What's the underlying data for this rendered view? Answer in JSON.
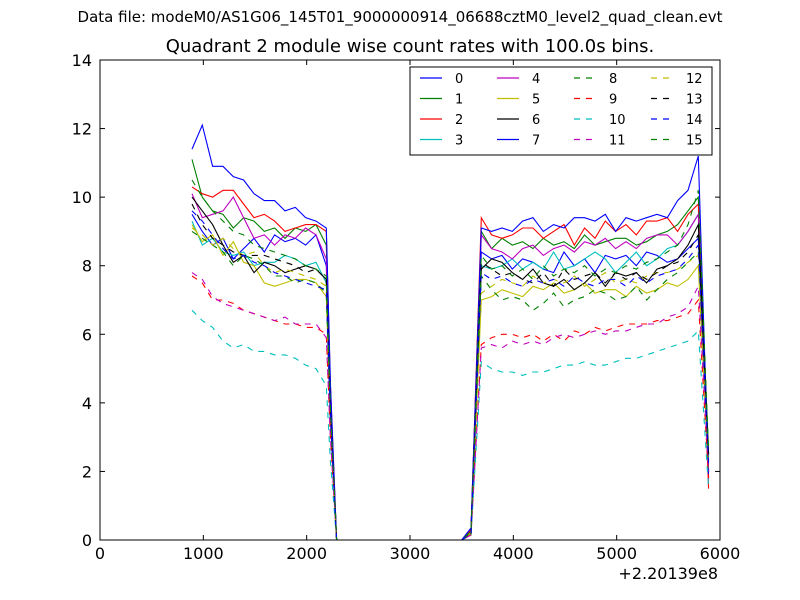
{
  "figure": {
    "suptitle": "Data file: modeM0/AS1G06_145T01_9000000914_06688cztM0_level2_quad_clean.evt",
    "offset_label": "+2.20139e8"
  },
  "chart_data": {
    "type": "line",
    "title": "Quadrant 2 module wise count rates with 100.0s bins.",
    "xlabel": "",
    "ylabel": "",
    "xlim": [
      0,
      6000
    ],
    "ylim": [
      0,
      14
    ],
    "x_offset": 220139000,
    "xticks": [
      0,
      1000,
      2000,
      3000,
      4000,
      5000,
      6000
    ],
    "xtick_labels": [
      "0",
      "1000",
      "2000",
      "3000",
      "4000",
      "5000",
      "6000"
    ],
    "yticks": [
      0,
      2,
      4,
      6,
      8,
      10,
      12,
      14
    ],
    "ytick_labels": [
      "0",
      "2",
      "4",
      "6",
      "8",
      "10",
      "12",
      "14"
    ],
    "legend_position": "top-right",
    "legend_columns": 4,
    "x": [
      890,
      990,
      1090,
      1190,
      1290,
      1390,
      1490,
      1590,
      1690,
      1790,
      1890,
      1990,
      2090,
      2190,
      2230,
      2290,
      3500,
      3590,
      3690,
      3790,
      3890,
      3990,
      4090,
      4190,
      4290,
      4390,
      4490,
      4590,
      4690,
      4790,
      4890,
      4990,
      5090,
      5190,
      5290,
      5390,
      5490,
      5590,
      5690,
      5790,
      5890
    ],
    "series": [
      {
        "name": "0",
        "color": "#0000ff",
        "dash": "solid",
        "values": [
          9.5,
          9.0,
          8.6,
          8.8,
          8.2,
          8.5,
          8.8,
          8.4,
          8.9,
          8.7,
          8.8,
          8.6,
          8.9,
          8.0,
          4.0,
          0,
          0,
          0.2,
          8.4,
          8.2,
          8.3,
          7.9,
          8.2,
          8.1,
          7.9,
          7.8,
          8.4,
          8.0,
          8.2,
          7.8,
          8.3,
          8.2,
          8.3,
          8.0,
          8.4,
          8.3,
          8.1,
          8.2,
          8.5,
          8.8,
          2.0
        ]
      },
      {
        "name": "1",
        "color": "#008000",
        "dash": "solid",
        "values": [
          11.1,
          10.0,
          9.6,
          9.5,
          9.1,
          9.4,
          9.3,
          9.0,
          9.1,
          8.8,
          9.1,
          9.0,
          9.2,
          8.6,
          4.3,
          0,
          0,
          0.25,
          9.0,
          8.5,
          8.8,
          8.6,
          8.7,
          8.5,
          8.8,
          8.6,
          8.7,
          8.5,
          8.9,
          8.6,
          8.7,
          8.8,
          8.8,
          8.6,
          8.7,
          8.9,
          9.0,
          9.2,
          9.6,
          10.0,
          2.3
        ]
      },
      {
        "name": "2",
        "color": "#ff0000",
        "dash": "solid",
        "values": [
          10.3,
          10.1,
          10.0,
          10.2,
          10.2,
          9.8,
          9.4,
          9.5,
          9.3,
          9.0,
          9.1,
          9.2,
          9.2,
          9.0,
          4.5,
          0,
          0,
          0.3,
          9.4,
          8.9,
          8.8,
          8.9,
          9.1,
          9.1,
          8.8,
          9.0,
          9.2,
          8.6,
          9.1,
          8.8,
          9.3,
          9.0,
          9.2,
          8.9,
          9.3,
          9.3,
          9.4,
          9.0,
          9.5,
          9.8,
          1.5
        ]
      },
      {
        "name": "3",
        "color": "#00bfbf",
        "dash": "solid",
        "values": [
          9.3,
          8.6,
          8.8,
          8.4,
          8.3,
          8.4,
          8.0,
          8.1,
          8.1,
          8.3,
          8.2,
          8.0,
          8.1,
          7.5,
          3.8,
          0,
          0,
          0.2,
          8.0,
          7.9,
          8.0,
          8.2,
          7.9,
          8.1,
          7.9,
          8.4,
          7.9,
          8.0,
          8.2,
          8.4,
          8.2,
          7.8,
          8.1,
          8.4,
          8.0,
          8.2,
          8.5,
          8.6,
          9.0,
          9.5,
          2.5
        ]
      },
      {
        "name": "4",
        "color": "#bf00bf",
        "dash": "solid",
        "values": [
          10.1,
          9.4,
          9.5,
          9.6,
          10.0,
          9.4,
          8.8,
          8.9,
          8.6,
          8.9,
          8.8,
          9.1,
          8.9,
          8.2,
          4.2,
          0,
          0,
          0.2,
          8.9,
          8.5,
          8.4,
          8.2,
          8.5,
          8.6,
          8.3,
          8.5,
          8.6,
          8.4,
          8.7,
          8.6,
          8.8,
          8.5,
          8.7,
          8.5,
          8.8,
          8.9,
          8.9,
          8.6,
          9.0,
          9.5,
          2.0
        ]
      },
      {
        "name": "5",
        "color": "#bfbf00",
        "dash": "solid",
        "values": [
          9.2,
          8.7,
          8.9,
          8.3,
          8.7,
          8.1,
          8.0,
          7.5,
          7.4,
          7.5,
          7.6,
          7.6,
          7.5,
          7.1,
          3.5,
          0,
          0,
          0.2,
          7.0,
          7.1,
          7.3,
          7.2,
          7.1,
          7.4,
          7.3,
          7.5,
          7.2,
          7.3,
          7.5,
          7.2,
          7.3,
          7.3,
          7.1,
          7.4,
          7.2,
          7.3,
          7.5,
          7.4,
          7.6,
          8.0,
          2.0
        ]
      },
      {
        "name": "6",
        "color": "#000000",
        "dash": "solid",
        "values": [
          10.0,
          9.6,
          9.2,
          8.6,
          8.1,
          8.3,
          7.8,
          8.1,
          8.0,
          7.8,
          7.9,
          8.0,
          7.9,
          7.6,
          3.8,
          0,
          0,
          0.15,
          7.9,
          8.2,
          8.1,
          7.8,
          7.6,
          7.9,
          7.5,
          7.4,
          7.6,
          7.3,
          7.5,
          7.8,
          7.4,
          7.8,
          7.7,
          7.8,
          7.5,
          7.9,
          8.0,
          8.2,
          8.6,
          9.2,
          2.5
        ]
      },
      {
        "name": "7",
        "color": "#0000ff",
        "dash": "solid",
        "values": [
          11.4,
          12.1,
          10.9,
          10.9,
          10.6,
          10.5,
          10.1,
          9.9,
          9.9,
          9.6,
          9.7,
          9.4,
          9.3,
          9.1,
          4.6,
          0,
          0,
          0.35,
          9.1,
          9.0,
          9.1,
          9.0,
          9.3,
          9.4,
          9.0,
          9.2,
          9.1,
          9.4,
          9.4,
          9.3,
          9.5,
          9.0,
          9.4,
          9.3,
          9.4,
          9.5,
          9.4,
          9.9,
          10.2,
          11.2,
          1.8
        ]
      },
      {
        "name": "8",
        "color": "#008000",
        "dash": "dashed",
        "values": [
          9.0,
          8.8,
          8.6,
          8.4,
          8.0,
          8.3,
          8.2,
          8.0,
          7.7,
          7.7,
          7.5,
          7.6,
          7.5,
          7.2,
          3.6,
          0,
          0,
          0.2,
          7.7,
          7.3,
          7.0,
          7.1,
          7.0,
          6.7,
          6.9,
          7.2,
          6.8,
          7.0,
          7.1,
          7.3,
          7.2,
          7.0,
          7.1,
          7.4,
          7.0,
          7.3,
          7.6,
          7.8,
          8.1,
          8.4,
          2.1
        ]
      },
      {
        "name": "9",
        "color": "#ff0000",
        "dash": "dashed",
        "values": [
          7.7,
          7.5,
          7.0,
          7.0,
          6.9,
          6.7,
          6.6,
          6.5,
          6.4,
          6.3,
          6.3,
          6.2,
          6.2,
          6.0,
          3.0,
          0,
          0,
          0.15,
          5.7,
          5.9,
          6.0,
          6.0,
          5.9,
          6.0,
          5.8,
          6.0,
          5.8,
          6.1,
          6.0,
          6.2,
          6.1,
          6.2,
          6.3,
          6.3,
          6.3,
          6.4,
          6.4,
          6.5,
          6.6,
          7.0,
          1.8
        ]
      },
      {
        "name": "10",
        "color": "#00bfbf",
        "dash": "dashed",
        "values": [
          6.7,
          6.4,
          6.2,
          5.8,
          5.6,
          5.7,
          5.5,
          5.5,
          5.4,
          5.4,
          5.3,
          5.1,
          5.0,
          4.5,
          2.3,
          0,
          0,
          0.15,
          5.2,
          5.0,
          4.9,
          4.9,
          4.8,
          4.9,
          4.9,
          5.0,
          5.1,
          5.1,
          5.2,
          5.1,
          5.1,
          5.2,
          5.3,
          5.3,
          5.4,
          5.5,
          5.6,
          5.7,
          5.8,
          6.1,
          1.5
        ]
      },
      {
        "name": "11",
        "color": "#bf00bf",
        "dash": "dashed",
        "values": [
          7.8,
          7.6,
          7.1,
          6.9,
          6.8,
          6.7,
          6.6,
          6.5,
          6.4,
          6.5,
          6.3,
          6.3,
          6.3,
          5.9,
          3.0,
          0,
          0,
          0.15,
          5.6,
          5.7,
          5.6,
          5.8,
          5.7,
          5.8,
          5.7,
          5.9,
          6.0,
          5.9,
          6.0,
          6.1,
          6.0,
          6.1,
          6.1,
          6.2,
          6.3,
          6.3,
          6.5,
          6.6,
          6.8,
          7.4,
          2.0
        ]
      },
      {
        "name": "12",
        "color": "#bfbf00",
        "dash": "dashed",
        "values": [
          9.1,
          8.9,
          8.6,
          8.8,
          8.5,
          8.3,
          8.4,
          8.0,
          7.8,
          7.9,
          7.8,
          7.7,
          7.6,
          7.4,
          3.7,
          0,
          0,
          0.2,
          7.2,
          7.4,
          7.6,
          7.5,
          7.4,
          7.7,
          7.5,
          7.6,
          7.5,
          7.7,
          7.4,
          7.6,
          7.8,
          7.5,
          7.6,
          7.5,
          7.7,
          7.8,
          7.8,
          7.9,
          8.1,
          8.3,
          2.2
        ]
      },
      {
        "name": "13",
        "color": "#000000",
        "dash": "dashed",
        "values": [
          9.8,
          9.2,
          8.8,
          8.6,
          8.4,
          8.3,
          8.3,
          8.3,
          8.2,
          8.1,
          8.0,
          7.8,
          7.9,
          7.6,
          3.8,
          0,
          0,
          0.2,
          8.1,
          7.9,
          7.7,
          7.8,
          7.6,
          7.5,
          7.8,
          7.4,
          7.9,
          7.6,
          7.7,
          7.8,
          7.5,
          7.8,
          7.6,
          7.8,
          7.6,
          7.8,
          8.0,
          8.1,
          8.4,
          8.9,
          2.4
        ]
      },
      {
        "name": "14",
        "color": "#0000ff",
        "dash": "dashed",
        "values": [
          9.6,
          9.3,
          8.9,
          8.5,
          8.2,
          8.3,
          8.1,
          8.0,
          7.8,
          7.7,
          7.6,
          7.5,
          7.4,
          7.3,
          3.6,
          0,
          0,
          0.2,
          7.8,
          7.6,
          7.7,
          7.5,
          7.4,
          7.6,
          7.5,
          7.6,
          7.4,
          7.7,
          7.5,
          7.4,
          7.6,
          7.6,
          7.4,
          7.7,
          7.5,
          7.7,
          7.8,
          7.9,
          8.2,
          8.6,
          2.2
        ]
      },
      {
        "name": "15",
        "color": "#008000",
        "dash": "dashed",
        "values": [
          10.5,
          10.0,
          9.6,
          9.3,
          9.0,
          8.9,
          8.6,
          8.5,
          8.4,
          8.3,
          8.2,
          8.0,
          7.9,
          7.7,
          3.9,
          0,
          0,
          0.25,
          8.3,
          7.9,
          8.0,
          7.7,
          7.9,
          7.6,
          8.0,
          7.7,
          7.9,
          7.8,
          8.0,
          7.7,
          7.9,
          7.8,
          8.0,
          7.9,
          8.1,
          8.2,
          8.4,
          8.6,
          9.2,
          10.2,
          2.6
        ]
      }
    ]
  }
}
